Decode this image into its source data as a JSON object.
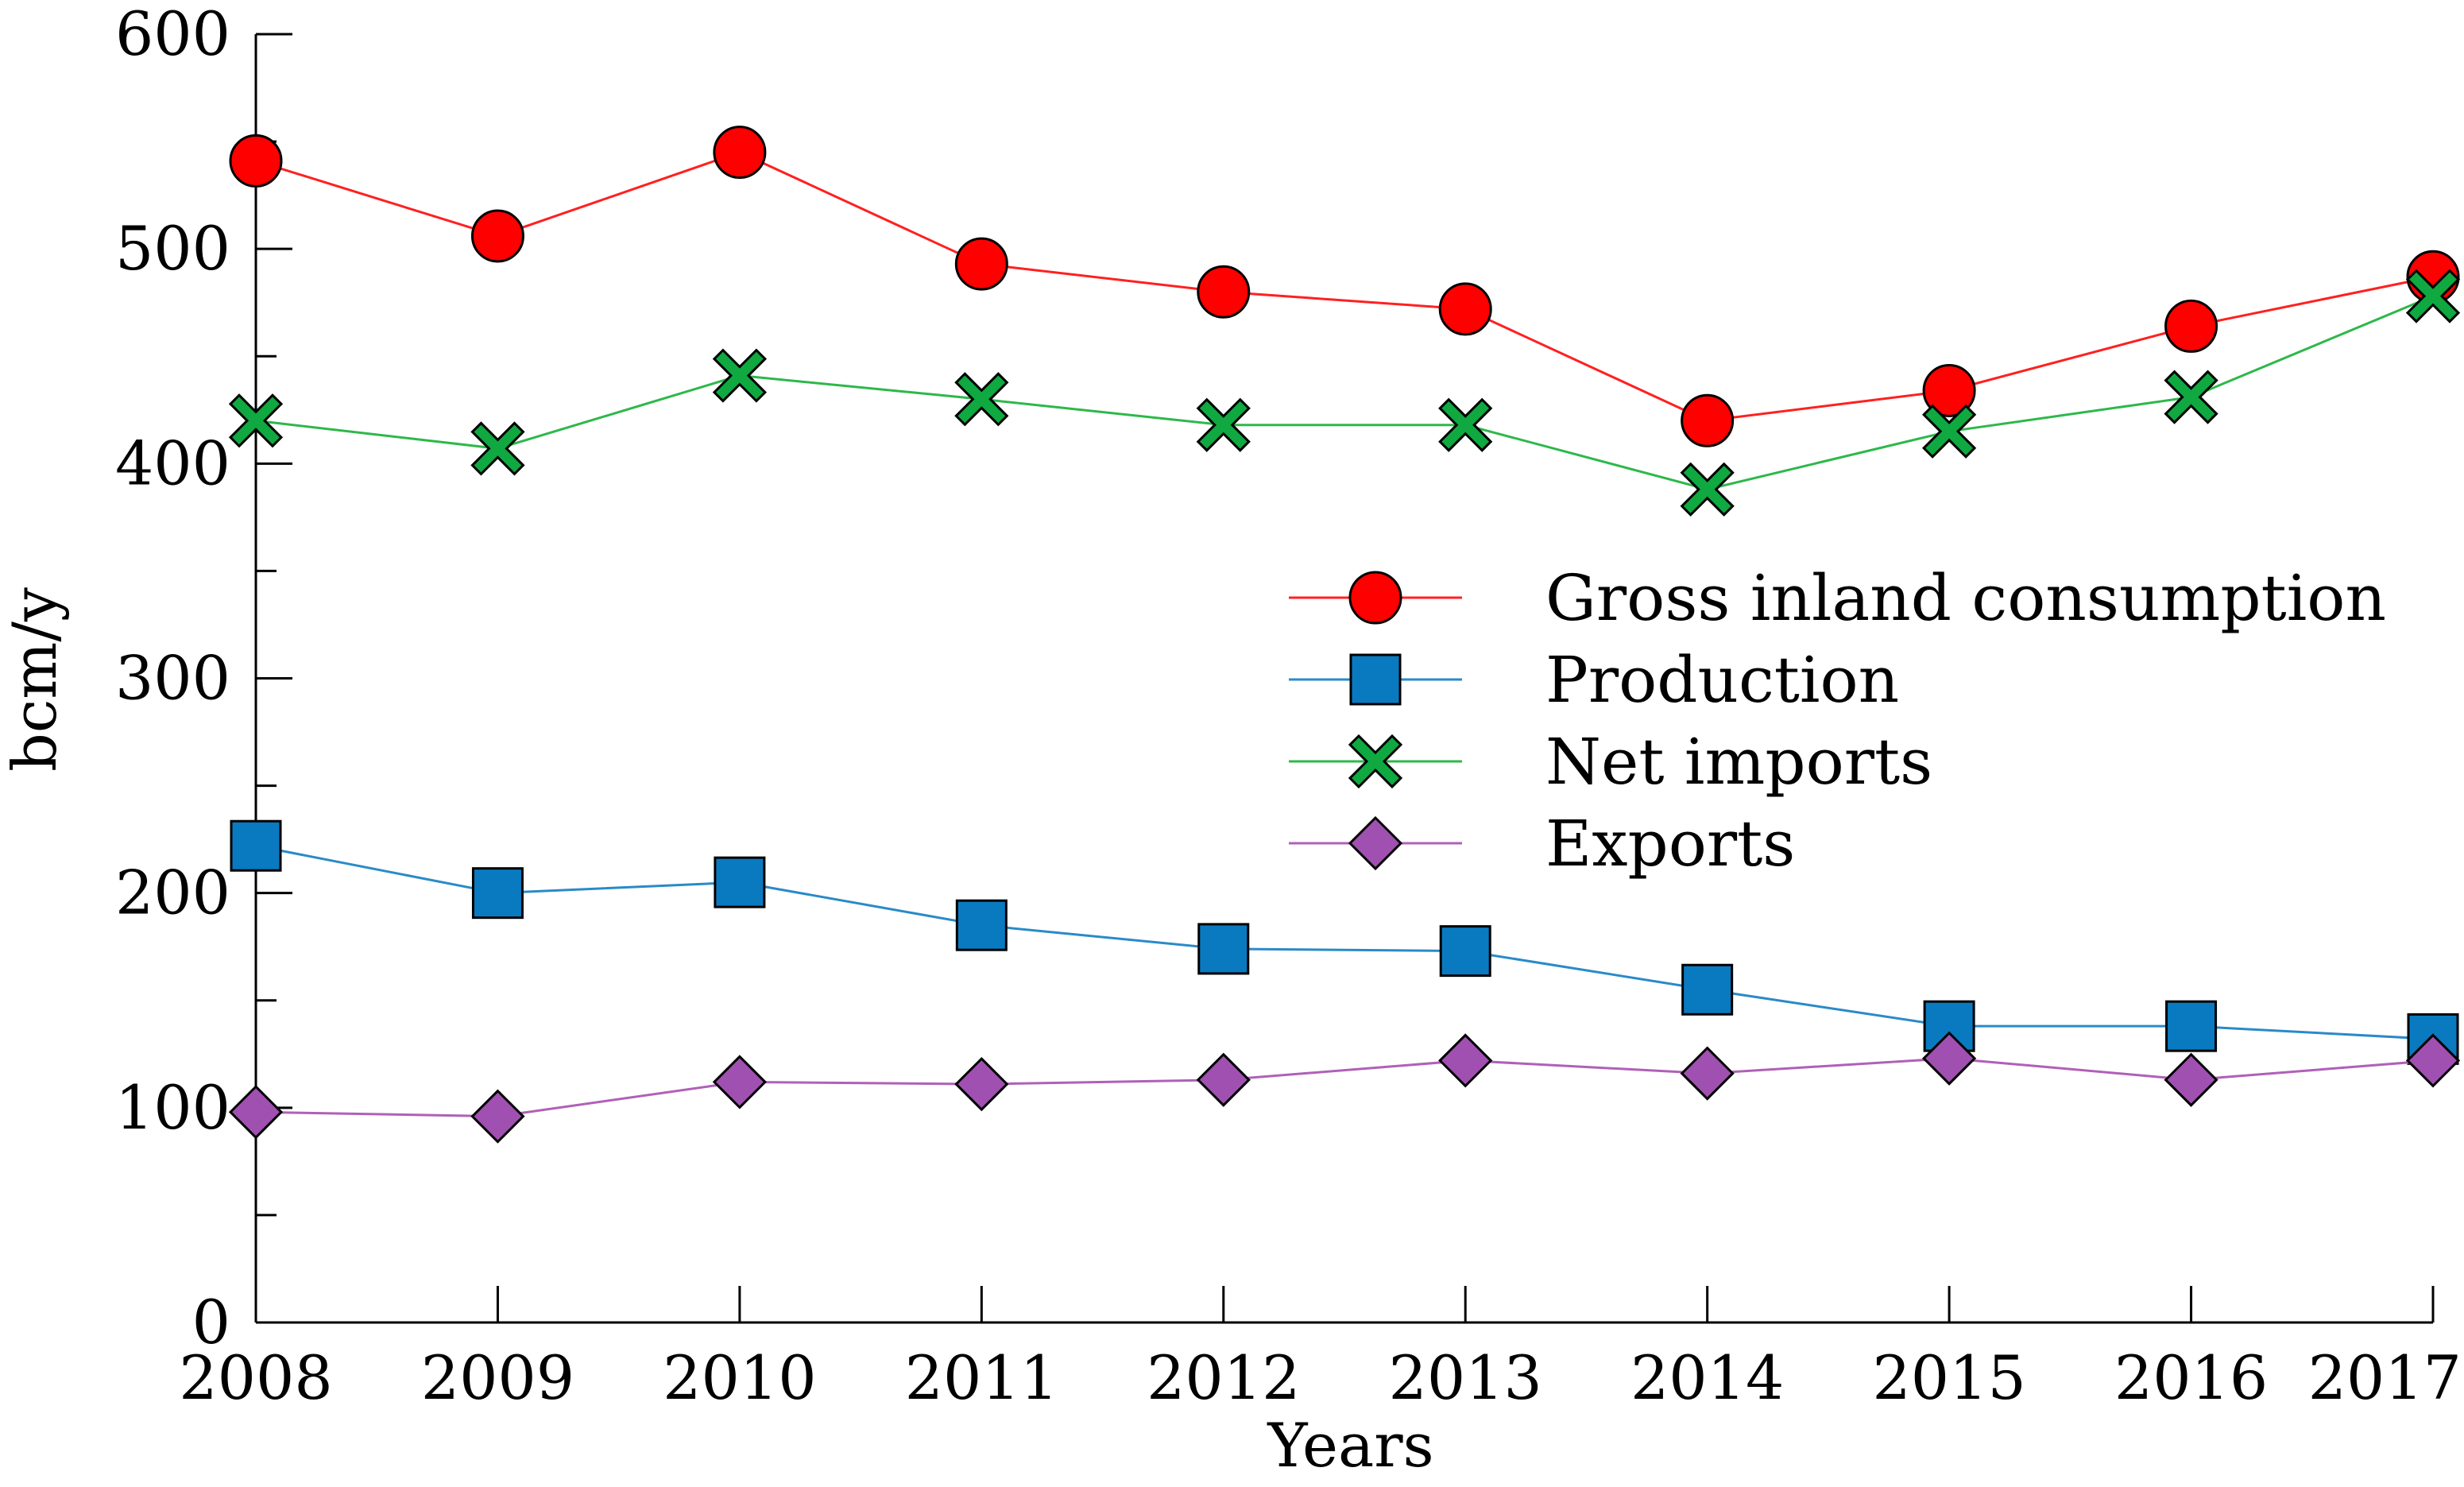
{
  "chart_data": {
    "type": "line",
    "title": "",
    "xlabel": "Years",
    "ylabel": "bcm/y",
    "ylim": [
      0,
      600
    ],
    "yticks": [
      0,
      100,
      200,
      300,
      400,
      500,
      600
    ],
    "ytick_labels": [
      "0",
      "100",
      "200",
      "300",
      "400",
      "500",
      "600"
    ],
    "categories": [
      "2008",
      "2009",
      "2010",
      "2011",
      "2012",
      "2013",
      "2014",
      "2015",
      "2016",
      "2017"
    ],
    "grid": false,
    "legend_position": "center-right",
    "series": [
      {
        "name": "Gross inland consumption",
        "marker": "circle",
        "line_color": "#ff2020",
        "fill_color": "#ff0000",
        "values": [
          541,
          506,
          545,
          493,
          480,
          472,
          420,
          434,
          464,
          487
        ]
      },
      {
        "name": "Production",
        "marker": "square",
        "line_color": "#2a8ac8",
        "fill_color": "#0a7ac0",
        "values": [
          222,
          200,
          205,
          185,
          174,
          173,
          155,
          138,
          138,
          132
        ]
      },
      {
        "name": "Net imports",
        "marker": "x",
        "line_color": "#2db84a",
        "fill_color": "#10a840",
        "values": [
          420,
          407,
          441,
          430,
          418,
          418,
          388,
          415,
          431,
          478
        ]
      },
      {
        "name": "Exports",
        "marker": "diamond",
        "line_color": "#b060b8",
        "fill_color": "#a050b0",
        "values": [
          98,
          96,
          112,
          111,
          113,
          122,
          116,
          123,
          113,
          122
        ]
      }
    ]
  }
}
